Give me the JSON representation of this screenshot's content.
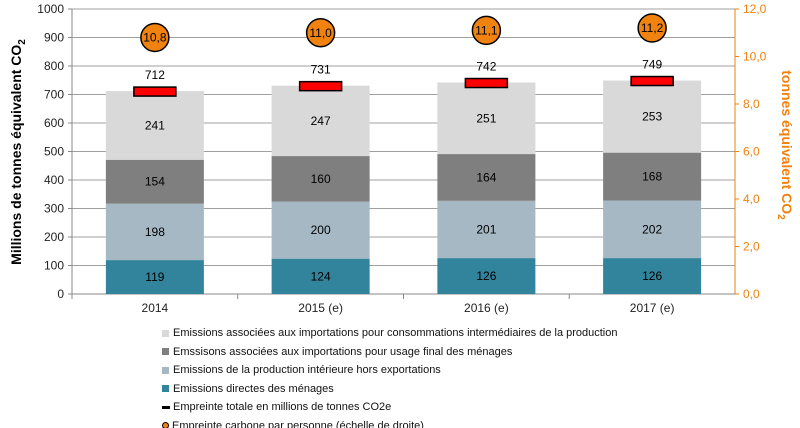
{
  "chart_data": {
    "type": "bar",
    "stacked": true,
    "categories": [
      "2014",
      "2015 (e)",
      "2016 (e)",
      "2017 (e)"
    ],
    "series": [
      {
        "name": "Emissions directes des ménages",
        "values": [
          119,
          124,
          126,
          126
        ],
        "color": "#31849b"
      },
      {
        "name": "Emissions de la production intérieure hors exportations",
        "values": [
          198,
          200,
          201,
          202
        ],
        "color": "#a5b8c4"
      },
      {
        "name": "Emssisons associées aux importations pour usage final des ménages",
        "values": [
          154,
          160,
          164,
          168
        ],
        "color": "#7f7f7f"
      },
      {
        "name": "Emissions associées aux importations pour consommations intermédiaires de la production",
        "values": [
          241,
          247,
          251,
          253
        ],
        "color": "#d9d9d9"
      }
    ],
    "total": {
      "name": "Empreinte totale en millions de tonnes CO2e",
      "values": [
        712,
        731,
        742,
        749
      ],
      "labels": [
        "712",
        "731",
        "742",
        "749"
      ],
      "color": "#ff0000"
    },
    "per_person": {
      "name": "Empreinte carbone par personne (échelle de droite)",
      "values": [
        10.8,
        11.0,
        11.1,
        11.2
      ],
      "labels": [
        "10,8",
        "11,0",
        "11,1",
        "11,2"
      ],
      "color": "#f0820f"
    },
    "ylabel": "Millions de tonnes équivalent CO",
    "ylabel_sub": "2",
    "y2label": "tonnes équivalent CO",
    "y2label_sub": "2",
    "ylim": [
      0,
      1000
    ],
    "y2lim": [
      0,
      12
    ],
    "yticks": [
      "0",
      "100",
      "200",
      "300",
      "400",
      "500",
      "600",
      "700",
      "800",
      "900",
      "1000"
    ],
    "y2ticks": [
      "0,0",
      "2,0",
      "4,0",
      "6,0",
      "8,0",
      "10,0",
      "12,0"
    ],
    "grid": true,
    "legend_position": "bottom",
    "axis_color_right": "#f0820f"
  }
}
